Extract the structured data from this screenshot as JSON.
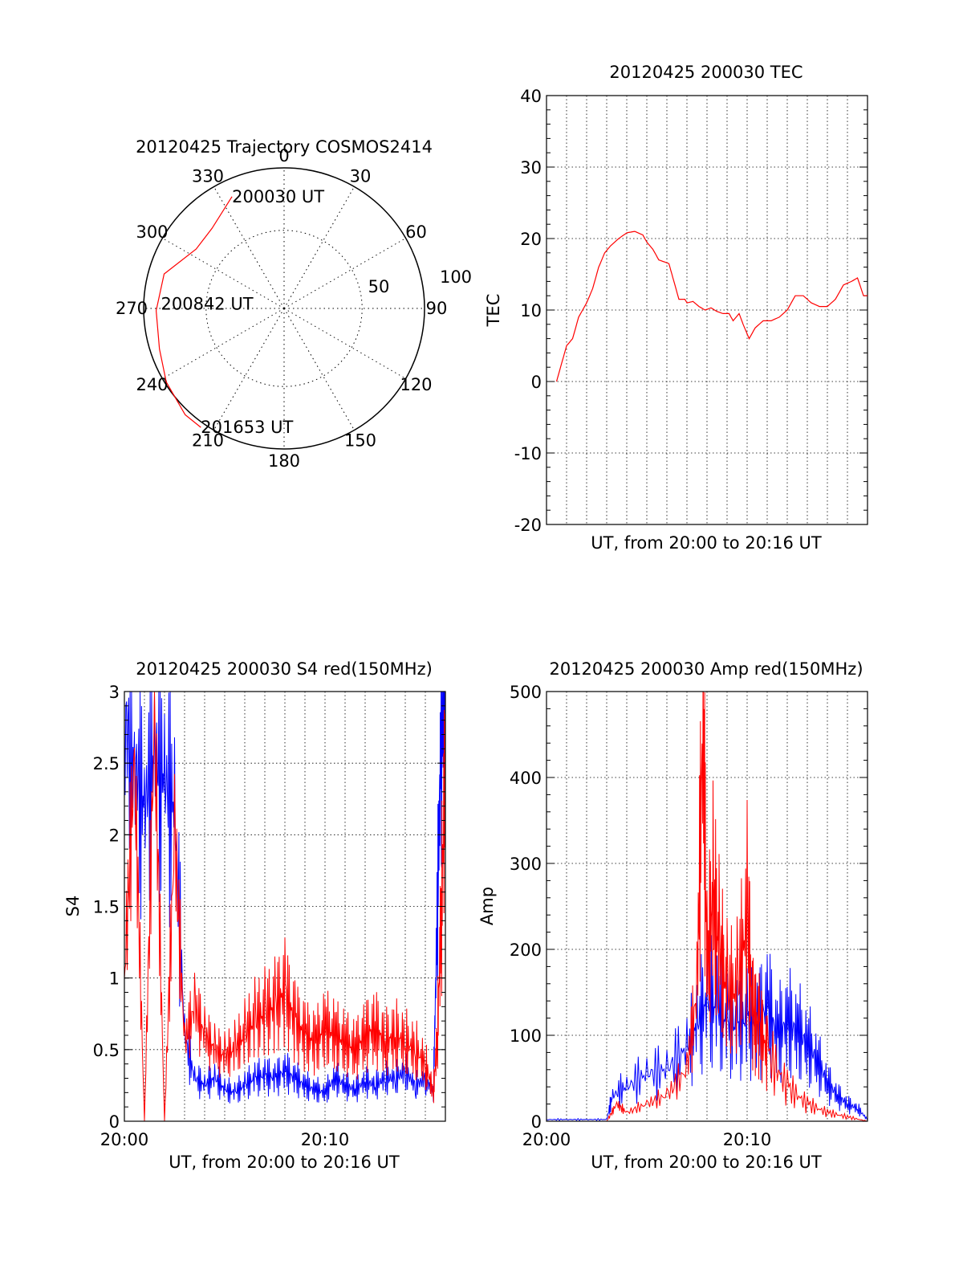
{
  "colors": {
    "red": "#ff0000",
    "blue": "#0000ff",
    "axis": "#000000",
    "grid": "#000000"
  },
  "chart_data": [
    {
      "id": "trajectory",
      "type": "scatter",
      "subtype": "polar",
      "title": "20120425 Trajectory COSMOS2414",
      "angle_labels": [
        "0",
        "30",
        "60",
        "90",
        "120",
        "150",
        "180",
        "210",
        "240",
        "270",
        "300",
        "330"
      ],
      "radius_labels": [
        "50",
        "100"
      ],
      "grid": true,
      "series": [
        {
          "color": "#ff0000",
          "points": [
            {
              "az": 335,
              "zen": 79
            },
            {
              "az": 318,
              "zen": 69
            },
            {
              "az": 304,
              "zen": 68
            },
            {
              "az": 286,
              "zen": 80
            },
            {
              "az": 269,
              "zen": 82
            },
            {
              "az": 252,
              "zen": 84
            },
            {
              "az": 238,
              "zen": 89
            },
            {
              "az": 223,
              "zen": 93
            },
            {
              "az": 215,
              "zen": 93
            }
          ]
        }
      ],
      "annotations": [
        {
          "text": "200030 UT",
          "az": 335,
          "zen": 79
        },
        {
          "text": "200842 UT",
          "az": 272,
          "zen": 79
        },
        {
          "text": "201653 UT",
          "az": 215,
          "zen": 93
        }
      ]
    },
    {
      "id": "tec",
      "type": "line",
      "title": "20120425 200030 TEC",
      "xlabel": "UT, from 20:00 to 20:16 UT",
      "ylabel": "TEC",
      "ylim": [
        -20,
        40
      ],
      "yticks": [
        "-20",
        "-10",
        "0",
        "10",
        "20",
        "30",
        "40"
      ],
      "xlim": [
        0,
        16
      ],
      "grid": true,
      "series": [
        {
          "color": "#ff0000",
          "x": [
            0.5,
            0.8,
            1.0,
            1.3,
            1.6,
            2.0,
            2.3,
            2.6,
            2.9,
            3.2,
            3.6,
            4.0,
            4.4,
            4.8,
            5.0,
            5.3,
            5.6,
            5.8,
            6.1,
            6.3,
            6.6,
            6.9,
            7.0,
            7.3,
            7.6,
            7.9,
            8.2,
            8.5,
            8.8,
            9.1,
            9.3,
            9.6,
            9.8,
            10.1,
            10.4,
            10.8,
            11.2,
            11.6,
            12.0,
            12.4,
            12.8,
            13.2,
            13.6,
            14.0,
            14.4,
            14.8,
            15.2,
            15.5,
            15.8,
            16.0
          ],
          "y": [
            0,
            3,
            5,
            6,
            9,
            11,
            13,
            16,
            18,
            19,
            20,
            20.8,
            21,
            20.5,
            19.5,
            18.5,
            17,
            16.8,
            16.5,
            14.5,
            11.5,
            11.5,
            11,
            11.2,
            10.5,
            10,
            10.3,
            9.8,
            9.5,
            9.5,
            8.5,
            9.5,
            8,
            6,
            7.5,
            8.5,
            8.5,
            9,
            10,
            12,
            12,
            11,
            10.5,
            10.5,
            11.5,
            13.5,
            14,
            14.5,
            12,
            12
          ]
        }
      ]
    },
    {
      "id": "s4",
      "type": "line",
      "title": "20120425 200030 S4 red(150MHz)",
      "xlabel": "UT, from 20:00 to 20:16 UT",
      "ylabel": "S4",
      "ylim": [
        0,
        3
      ],
      "yticks": [
        "0",
        "0.5",
        "1",
        "1.5",
        "2",
        "2.5",
        "3"
      ],
      "xlim": [
        0,
        16
      ],
      "xticks": [
        {
          "value": 0,
          "label": "20:00"
        },
        {
          "value": 10,
          "label": "20:10"
        }
      ],
      "grid": true,
      "series": [
        {
          "color": "#0000ff",
          "x": [
            0,
            0.5,
            1.0,
            1.5,
            2.0,
            2.5,
            3.0,
            3.5,
            4.0,
            4.5,
            5.0,
            5.5,
            6.0,
            6.5,
            7.0,
            7.5,
            8.0,
            8.5,
            9.0,
            9.5,
            10.0,
            10.5,
            11.0,
            11.5,
            12.0,
            12.5,
            13.0,
            13.5,
            14.0,
            14.5,
            15.0,
            15.4,
            15.6,
            15.8,
            16.0
          ],
          "y": [
            2.8,
            2.5,
            2.2,
            2.6,
            2.4,
            2.2,
            0.6,
            0.3,
            0.25,
            0.3,
            0.22,
            0.2,
            0.25,
            0.3,
            0.32,
            0.3,
            0.35,
            0.3,
            0.25,
            0.22,
            0.2,
            0.3,
            0.25,
            0.22,
            0.28,
            0.25,
            0.3,
            0.3,
            0.35,
            0.25,
            0.3,
            0.2,
            1.5,
            2.8,
            3.0
          ]
        },
        {
          "color": "#ff0000",
          "x": [
            0,
            0.5,
            1.0,
            1.5,
            2.0,
            2.5,
            3.0,
            3.5,
            4.0,
            4.5,
            5.0,
            5.5,
            6.0,
            6.5,
            7.0,
            7.5,
            8.0,
            8.5,
            9.0,
            9.5,
            10.0,
            10.5,
            11.0,
            11.5,
            12.0,
            12.5,
            13.0,
            13.5,
            14.0,
            14.5,
            15.0,
            15.4,
            15.6,
            15.8,
            16.0
          ],
          "y": [
            1.0,
            2.5,
            0.0,
            2.8,
            0.0,
            2.0,
            0.55,
            0.8,
            0.6,
            0.5,
            0.45,
            0.5,
            0.6,
            0.7,
            0.75,
            0.8,
            0.9,
            0.7,
            0.6,
            0.55,
            0.65,
            0.6,
            0.55,
            0.5,
            0.6,
            0.65,
            0.55,
            0.6,
            0.55,
            0.5,
            0.4,
            0.2,
            0.6,
            1.5,
            2.5
          ]
        }
      ]
    },
    {
      "id": "amp",
      "type": "line",
      "title": "20120425 200030 Amp red(150MHz)",
      "xlabel": "UT, from 20:00 to 20:16 UT",
      "ylabel": "Amp",
      "ylim": [
        0,
        500
      ],
      "yticks": [
        "0",
        "100",
        "200",
        "300",
        "400",
        "500"
      ],
      "xlim": [
        0,
        16
      ],
      "xticks": [
        {
          "value": 0,
          "label": "20:00"
        },
        {
          "value": 10,
          "label": "20:10"
        }
      ],
      "grid": true,
      "series": [
        {
          "color": "#0000ff",
          "x": [
            0,
            1.0,
            2.0,
            3.0,
            3.3,
            4.0,
            5.0,
            6.0,
            7.0,
            7.5,
            8.0,
            8.5,
            9.0,
            9.5,
            10.0,
            10.5,
            11.0,
            11.5,
            12.0,
            12.5,
            13.0,
            13.5,
            14.0,
            14.5,
            15.0,
            15.5,
            16.0
          ],
          "y": [
            2,
            2,
            2,
            2,
            30,
            40,
            55,
            60,
            85,
            110,
            140,
            130,
            115,
            110,
            120,
            110,
            135,
            100,
            115,
            105,
            90,
            70,
            45,
            30,
            20,
            15,
            2
          ]
        },
        {
          "color": "#ff0000",
          "x": [
            0,
            3.0,
            3.5,
            4.0,
            5.0,
            6.0,
            7.0,
            7.5,
            7.8,
            8.0,
            8.3,
            8.6,
            9.0,
            9.5,
            10.0,
            10.3,
            10.6,
            11.0,
            12.0,
            13.0,
            14.0,
            15.0,
            16.0
          ],
          "y": [
            0,
            0,
            20,
            10,
            20,
            30,
            60,
            150,
            470,
            180,
            260,
            200,
            150,
            150,
            235,
            120,
            110,
            80,
            40,
            20,
            10,
            5,
            0
          ]
        }
      ]
    }
  ]
}
